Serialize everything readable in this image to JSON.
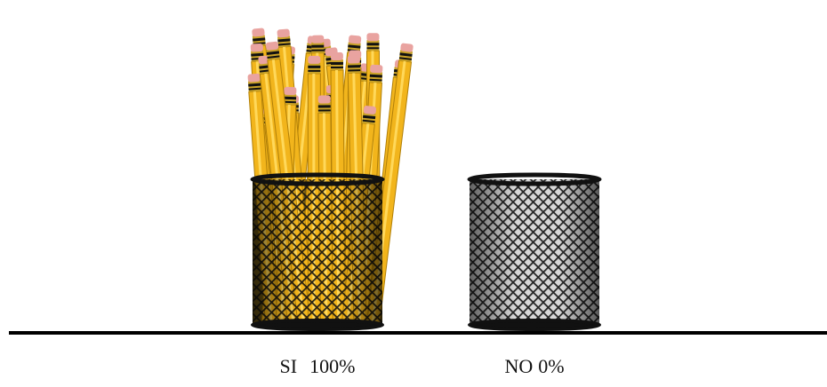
{
  "chart_data": {
    "type": "pictograph",
    "categories": [
      "SI",
      "NO"
    ],
    "values": [
      100,
      0
    ],
    "value_labels": [
      "100%",
      "0%"
    ],
    "color": "#f2b51c"
  }
}
